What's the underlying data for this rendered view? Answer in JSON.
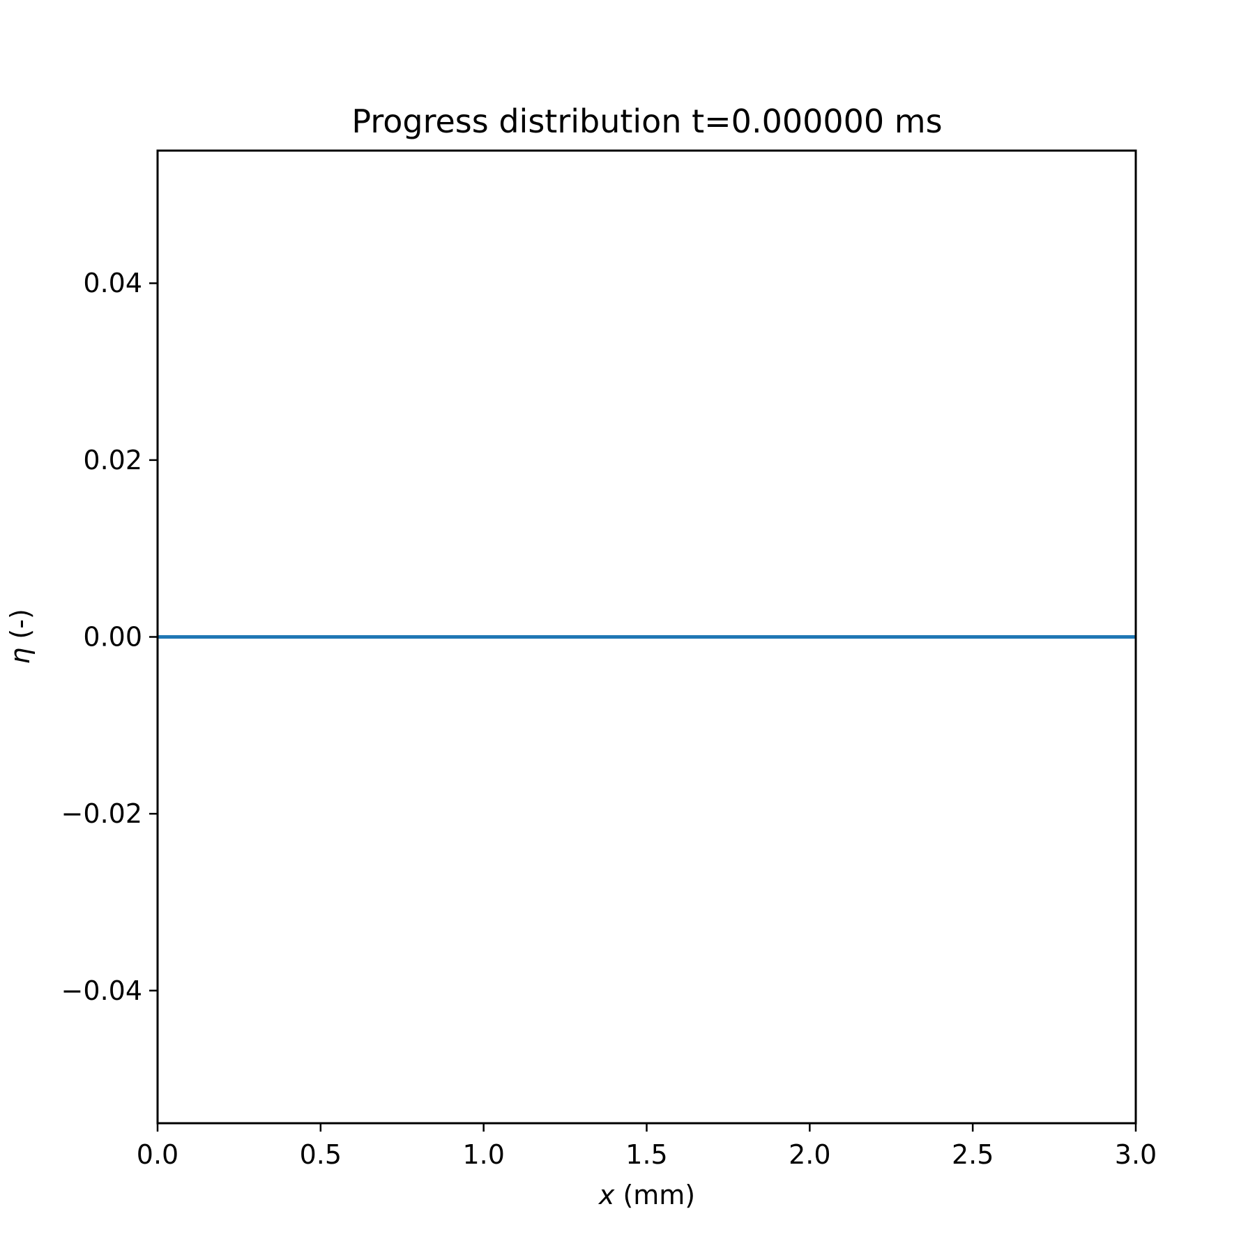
{
  "chart_data": {
    "type": "line",
    "title": "Progress distribution t=0.000000 ms",
    "xlabel_var": "x",
    "xlabel_unit": " (mm)",
    "ylabel_var": "η",
    "ylabel_unit": " (-)",
    "xlim": [
      0.0,
      3.0
    ],
    "ylim": [
      -0.055,
      0.055
    ],
    "x_ticks": [
      0.0,
      0.5,
      1.0,
      1.5,
      2.0,
      2.5,
      3.0
    ],
    "x_tick_labels": [
      "0.0",
      "0.5",
      "1.0",
      "1.5",
      "2.0",
      "2.5",
      "3.0"
    ],
    "y_ticks": [
      0.04,
      0.02,
      0.0,
      -0.02,
      -0.04
    ],
    "y_tick_labels": [
      "0.04",
      "0.02",
      "0.00",
      "−0.02",
      "−0.04"
    ],
    "grid": false,
    "series": [
      {
        "color": "#1f77b4",
        "x": [
          0.0,
          3.0
        ],
        "y": [
          0.0,
          0.0
        ]
      }
    ]
  }
}
